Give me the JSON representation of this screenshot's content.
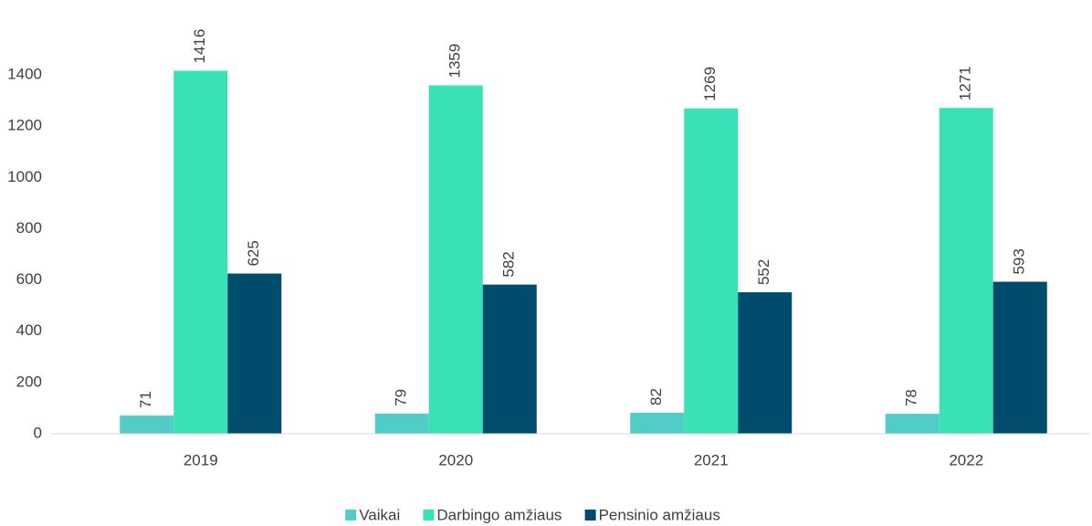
{
  "chart_data": {
    "type": "bar",
    "categories": [
      "2019",
      "2020",
      "2021",
      "2022"
    ],
    "series": [
      {
        "name": "Vaikai",
        "color": "#52ccc6",
        "values": [
          71,
          79,
          82,
          78
        ]
      },
      {
        "name": "Darbingo amžiaus",
        "color": "#38e2b6",
        "values": [
          1416,
          1359,
          1269,
          1271
        ]
      },
      {
        "name": "Pensinio amžiaus",
        "color": "#004c6d",
        "values": [
          625,
          582,
          552,
          593
        ]
      }
    ],
    "ylim": [
      0,
      1400
    ],
    "yticks": [
      0,
      200,
      400,
      600,
      800,
      1000,
      1200,
      1400
    ],
    "grid": false,
    "legend": "bottom"
  }
}
